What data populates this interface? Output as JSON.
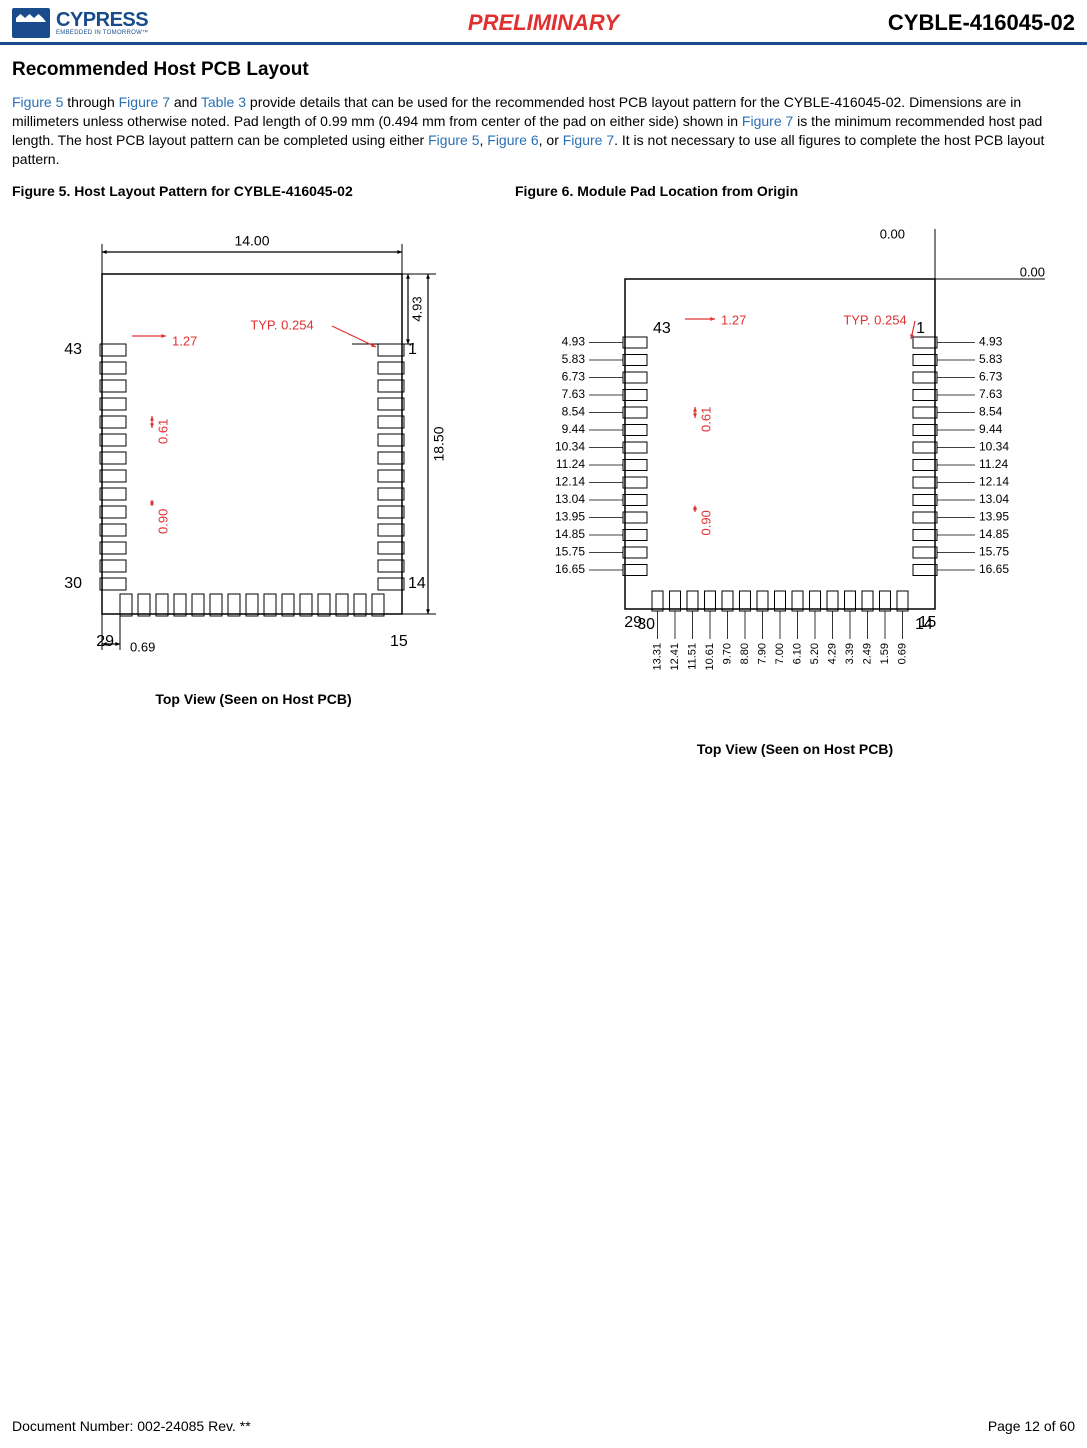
{
  "header": {
    "logo_name": "CYPRESS",
    "logo_tag": "EMBEDDED IN TOMORROW™",
    "preliminary": "PRELIMINARY",
    "doc_code": "CYBLE-416045-02"
  },
  "section_title": "Recommended Host PCB Layout",
  "body": {
    "p1a": "Figure 5",
    "p1b": " through ",
    "p1c": "Figure 7",
    "p1d": " and ",
    "p1e": "Table 3",
    "p1f": " provide details that can be used for the recommended host PCB layout pattern for the CYBLE-416045-02. Dimensions are in millimeters unless otherwise noted. Pad length of 0.99 mm (0.494 mm from center of the pad on either side) shown in ",
    "p1g": "Figure 7",
    "p1h": " is the minimum recommended host pad length. The host PCB layout pattern can be completed using either ",
    "p1i": "Figure 5",
    "p1j": ", ",
    "p1k": "Figure 6",
    "p1l": ", or ",
    "p1m": "Figure 7",
    "p1n": ". It is not necessary to use all figures to complete the host PCB layout pattern."
  },
  "fig5": {
    "title": "Figure 5.  Host Layout Pattern for CYBLE-416045-02",
    "caption": "Top View (Seen on Host PCB)",
    "dims": {
      "width": "14.00",
      "height": "18.50",
      "top_offset": "4.93",
      "typ": "TYP. 0.254",
      "pitch_top": "1.27",
      "pad_h": "0.61",
      "pad_gap": "0.90",
      "bottom_offset": "0.69"
    },
    "corners": {
      "tl": "43",
      "tr": "1",
      "bl": "30",
      "br": "14",
      "bottom_l": "29",
      "bottom_r": "15"
    },
    "colors": {
      "outline": "#000000",
      "dim_red": "#e03030",
      "dim_black": "#000000"
    }
  },
  "fig6": {
    "title": "Figure 6.  Module Pad Location from Origin",
    "caption": "Top View (Seen on Host PCB)",
    "origin": {
      "x": "0.00",
      "y": "0.00"
    },
    "dims": {
      "typ": "TYP. 0.254",
      "pitch": "1.27",
      "pad_h": "0.61",
      "pad_gap": "0.90"
    },
    "corners": {
      "tl": "43",
      "tr": "1",
      "bl": "30",
      "br": "14",
      "bottom_l": "29",
      "bottom_r": "15"
    },
    "left_y": [
      "4.93",
      "5.83",
      "6.73",
      "7.63",
      "8.54",
      "9.44",
      "10.34",
      "11.24",
      "12.14",
      "13.04",
      "13.95",
      "14.85",
      "15.75",
      "16.65"
    ],
    "right_y": [
      "4.93",
      "5.83",
      "6.73",
      "7.63",
      "8.54",
      "9.44",
      "10.34",
      "11.24",
      "12.14",
      "13.04",
      "13.95",
      "14.85",
      "15.75",
      "16.65"
    ],
    "bottom_x": [
      "13.31",
      "12.41",
      "11.51",
      "10.61",
      "9.70",
      "8.80",
      "7.90",
      "7.00",
      "6.10",
      "5.20",
      "4.29",
      "3.39",
      "2.49",
      "1.59",
      "0.69"
    ],
    "colors": {
      "outline": "#000000",
      "dim_red": "#e03030",
      "dim_black": "#000000"
    }
  },
  "footer": {
    "doc_num": "Document Number: 002-24085 Rev. **",
    "page": "Page 12 of 60"
  }
}
